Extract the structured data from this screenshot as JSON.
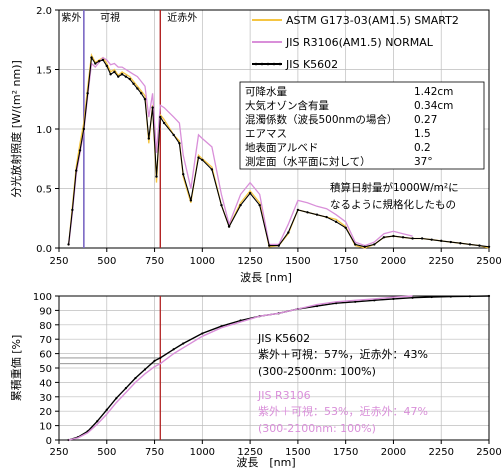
{
  "chart_data": [
    {
      "type": "line",
      "xlabel": "波長 [nm]",
      "ylabel": "分光放射照度 [W/(m² nm)]",
      "xlim": [
        250,
        2500
      ],
      "ylim": [
        0,
        2.0
      ],
      "xticks": [
        "250",
        "500",
        "750",
        "1000",
        "1250",
        "1500",
        "1750",
        "2000",
        "2250",
        "2500"
      ],
      "yticks": [
        "0.0",
        "0.5",
        "1.0",
        "1.5",
        "2.0"
      ],
      "regions": [
        {
          "label": "紫外",
          "x_end": 380
        },
        {
          "label": "可視",
          "x_end": 780
        },
        {
          "label": "近赤外",
          "x_end": 2500
        }
      ],
      "boundary_colors": {
        "uv_vis": "#7b68c4",
        "vis_nir": "#b22222"
      },
      "series": [
        {
          "name": "ASTM G173-03(AM1.5) SMART2",
          "color": "#f5c542",
          "x": [
            300,
            320,
            340,
            360,
            380,
            400,
            420,
            440,
            460,
            480,
            500,
            520,
            540,
            560,
            580,
            600,
            620,
            640,
            660,
            680,
            700,
            720,
            740,
            760,
            780,
            800,
            850,
            880,
            900,
            940,
            980,
            1000,
            1050,
            1100,
            1140,
            1200,
            1250,
            1300,
            1350,
            1400,
            1450,
            1500,
            1550,
            1600,
            1650,
            1700,
            1750,
            1800,
            1850,
            1900,
            1950,
            2000,
            2050,
            2100,
            2150,
            2200,
            2250,
            2300,
            2350,
            2400,
            2450,
            2500
          ],
          "y": [
            0.02,
            0.35,
            0.68,
            0.88,
            1.05,
            1.35,
            1.62,
            1.56,
            1.58,
            1.6,
            1.55,
            1.48,
            1.5,
            1.45,
            1.48,
            1.46,
            1.44,
            1.4,
            1.36,
            1.32,
            1.28,
            0.88,
            1.2,
            0.55,
            1.12,
            1.08,
            0.95,
            0.9,
            0.6,
            0.38,
            0.78,
            0.75,
            0.68,
            0.36,
            0.18,
            0.38,
            0.48,
            0.38,
            0.01,
            0.02,
            0.12,
            0.32,
            0.3,
            0.28,
            0.26,
            0.24,
            0.18,
            0.02,
            0.0,
            0.03,
            0.09,
            0.1,
            0.09,
            0.08,
            0.08,
            0.07,
            0.06,
            0.05,
            0.04,
            0.03,
            0.02,
            0.0
          ]
        },
        {
          "name": "JIS R3106(AM1.5) NORMAL",
          "color": "#d98fd9",
          "x": [
            300,
            320,
            340,
            360,
            380,
            400,
            420,
            440,
            460,
            480,
            500,
            520,
            540,
            560,
            580,
            600,
            620,
            640,
            660,
            680,
            700,
            720,
            740,
            760,
            780,
            800,
            850,
            880,
            900,
            940,
            980,
            1000,
            1050,
            1100,
            1140,
            1200,
            1250,
            1300,
            1350,
            1400,
            1450,
            1500,
            1550,
            1600,
            1650,
            1700,
            1750,
            1800,
            1850,
            1900,
            1950,
            2000,
            2050,
            2100
          ],
          "y": [
            0.02,
            0.3,
            0.62,
            0.8,
            0.98,
            1.28,
            1.55,
            1.52,
            1.56,
            1.6,
            1.58,
            1.54,
            1.55,
            1.52,
            1.52,
            1.5,
            1.48,
            1.46,
            1.44,
            1.4,
            1.36,
            1.1,
            1.3,
            0.8,
            1.2,
            1.18,
            1.1,
            1.05,
            0.78,
            0.5,
            0.95,
            0.92,
            0.85,
            0.45,
            0.2,
            0.45,
            0.55,
            0.45,
            0.03,
            0.03,
            0.2,
            0.4,
            0.38,
            0.35,
            0.33,
            0.28,
            0.22,
            0.05,
            0.02,
            0.05,
            0.12,
            0.14,
            0.12,
            0.1
          ]
        },
        {
          "name": "JIS K5602",
          "color": "#000000",
          "x": [
            300,
            320,
            340,
            360,
            380,
            400,
            420,
            440,
            460,
            480,
            500,
            520,
            540,
            560,
            580,
            600,
            620,
            640,
            660,
            680,
            700,
            720,
            740,
            760,
            780,
            800,
            850,
            880,
            900,
            940,
            980,
            1000,
            1050,
            1100,
            1140,
            1200,
            1250,
            1300,
            1350,
            1400,
            1450,
            1500,
            1550,
            1600,
            1650,
            1700,
            1750,
            1800,
            1850,
            1900,
            1950,
            2000,
            2050,
            2100,
            2150,
            2200,
            2250,
            2300,
            2350,
            2400,
            2450,
            2500
          ],
          "y": [
            0.03,
            0.32,
            0.65,
            0.82,
            1.0,
            1.3,
            1.6,
            1.55,
            1.57,
            1.58,
            1.53,
            1.46,
            1.48,
            1.44,
            1.46,
            1.44,
            1.42,
            1.38,
            1.34,
            1.3,
            1.25,
            0.92,
            1.18,
            0.6,
            1.1,
            1.05,
            0.95,
            0.88,
            0.62,
            0.4,
            0.76,
            0.74,
            0.66,
            0.36,
            0.18,
            0.36,
            0.46,
            0.36,
            0.02,
            0.02,
            0.13,
            0.32,
            0.3,
            0.28,
            0.26,
            0.22,
            0.17,
            0.03,
            0.01,
            0.03,
            0.09,
            0.1,
            0.09,
            0.08,
            0.08,
            0.07,
            0.06,
            0.05,
            0.04,
            0.03,
            0.02,
            0.01
          ]
        }
      ],
      "info_table": [
        {
          "k": "可降水量",
          "v": "1.42cm"
        },
        {
          "k": "大気オゾン含有量",
          "v": "0.34cm"
        },
        {
          "k": "混濁係数（波長500nmの場合）",
          "v": "0.27"
        },
        {
          "k": "エアマス",
          "v": "1.5"
        },
        {
          "k": "地表面アルベド",
          "v": "0.2"
        },
        {
          "k": "測定面（水平面に対して）",
          "v": "37°"
        }
      ],
      "note_lines": [
        "積算日射量が1000W/m²に",
        "なるように規格化したもの"
      ]
    },
    {
      "type": "line",
      "xlabel": "波長　[nm]",
      "ylabel": "累積重価 [%]",
      "xlim": [
        250,
        2500
      ],
      "ylim": [
        0,
        100
      ],
      "xticks": [
        "250",
        "500",
        "750",
        "1000",
        "1250",
        "1500",
        "1750",
        "2000",
        "2250",
        "2500"
      ],
      "yticks": [
        "0",
        "10",
        "20",
        "30",
        "40",
        "50",
        "60",
        "70",
        "80",
        "90",
        "100"
      ],
      "series": [
        {
          "name": "JIS K5602",
          "color": "#000000",
          "x": [
            300,
            350,
            400,
            450,
            500,
            550,
            600,
            650,
            700,
            750,
            780,
            850,
            900,
            1000,
            1100,
            1200,
            1300,
            1400,
            1500,
            1600,
            1700,
            1800,
            1900,
            2000,
            2100,
            2200,
            2300,
            2400,
            2500
          ],
          "y": [
            0,
            2,
            6,
            13,
            21,
            29,
            36,
            43,
            49,
            55,
            57,
            63,
            67,
            74,
            79,
            83,
            86,
            88,
            91,
            93,
            95,
            96,
            97,
            98,
            98.8,
            99.3,
            99.6,
            99.8,
            100
          ]
        },
        {
          "name": "JIS R3106",
          "color": "#d98fd9",
          "x": [
            300,
            350,
            400,
            450,
            500,
            550,
            600,
            650,
            700,
            750,
            780,
            850,
            900,
            1000,
            1100,
            1200,
            1300,
            1400,
            1500,
            1600,
            1700,
            1800,
            1900,
            2000,
            2100
          ],
          "y": [
            0,
            1.5,
            5,
            11,
            18,
            26,
            33,
            40,
            46,
            51,
            53,
            60,
            64,
            72,
            78,
            82,
            86,
            88,
            91,
            94,
            96,
            97,
            98,
            99.2,
            100
          ]
        }
      ],
      "annotations": [
        {
          "color": "#000000",
          "lines": [
            "JIS K5602",
            "紫外＋可視：57%，近赤外：43%",
            "(300-2500nm: 100%)"
          ]
        },
        {
          "color": "#d98fd9",
          "lines": [
            "JIS R3106",
            "紫外＋可視：53%，近赤外：47%",
            "(300-2100nm: 100%)"
          ]
        }
      ],
      "boundary_color": "#b22222",
      "boundary_x": 780
    }
  ]
}
